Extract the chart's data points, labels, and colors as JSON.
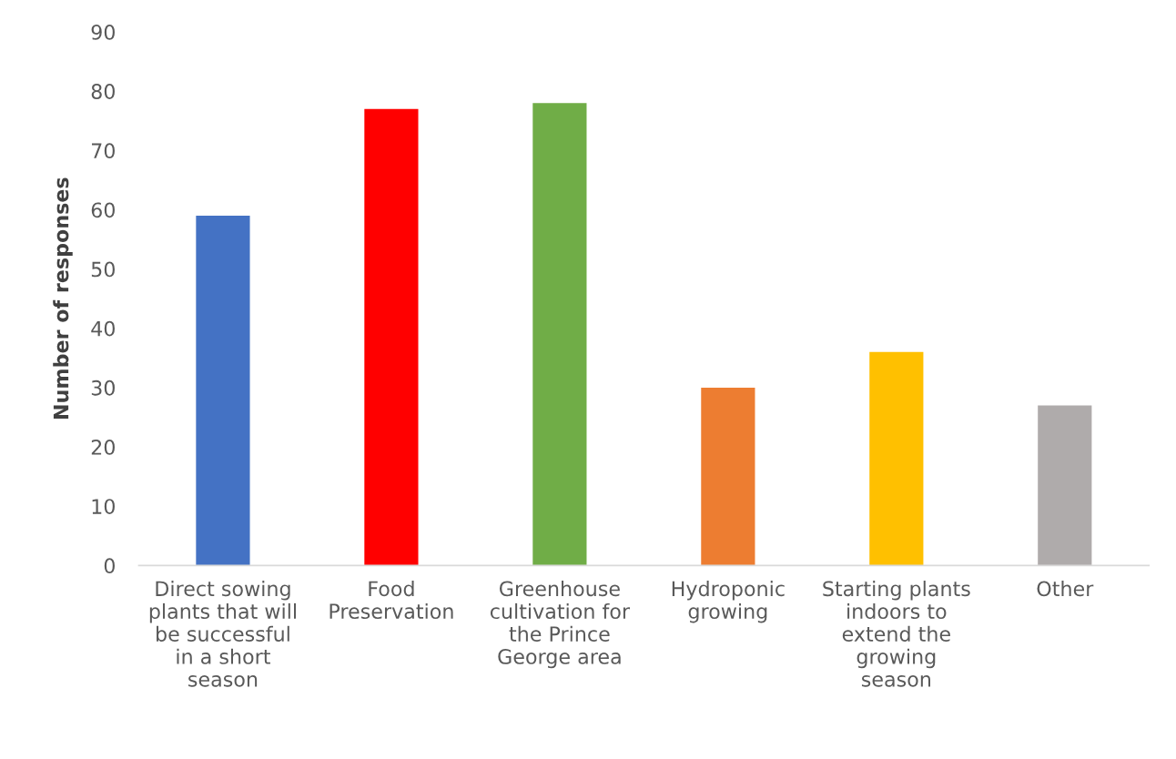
{
  "chart_data": {
    "type": "bar",
    "ylabel": "Number of responses",
    "categories": [
      "Direct sowing\nplants that will\nbe successful\nin a short\nseason",
      "Food\nPreservation",
      "Greenhouse\ncultivation for\nthe Prince\nGeorge area",
      "Hydroponic\ngrowing",
      "Starting plants\nindoors to\nextend the\ngrowing\nseason",
      "Other"
    ],
    "values": [
      59,
      77,
      78,
      30,
      36,
      27
    ],
    "colors": [
      "#4472c4",
      "#ff0000",
      "#70ad47",
      "#ed7d31",
      "#ffc000",
      "#afabab"
    ],
    "ylim": [
      0,
      90
    ],
    "yticks": [
      0,
      10,
      20,
      30,
      40,
      50,
      60,
      70,
      80,
      90
    ],
    "grid": false,
    "legend": false
  }
}
